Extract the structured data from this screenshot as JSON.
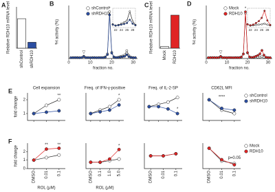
{
  "chart_data": [
    {
      "type": "bar",
      "panel": "A",
      "ylabel": "Relative RDH10 mRNA level",
      "categories": [
        "shControl",
        "shRDH10"
      ],
      "values": [
        1.0,
        0.2
      ],
      "colors": [
        "#ffffff",
        "#2b4ea2"
      ],
      "ylim": [
        0,
        1.4
      ]
    },
    {
      "type": "line",
      "panel": "B",
      "ylabel": "³H activity (%)",
      "xlabel": "fraction no.",
      "x": [
        1,
        2,
        3,
        4,
        5,
        6,
        7,
        8,
        9,
        10,
        11,
        12,
        13,
        14,
        15,
        16,
        17,
        18,
        19,
        20,
        21,
        22,
        23,
        24,
        25,
        26,
        27,
        28,
        29,
        30,
        31
      ],
      "xlim": [
        0,
        32
      ],
      "xticks": [
        0,
        10,
        20,
        30
      ],
      "ylim": [
        0,
        34
      ],
      "series": [
        {
          "name": "shControl",
          "color": "#ffffff",
          "values": [
            0.5,
            0.6,
            0.5,
            0.6,
            0.5,
            0.6,
            1.5,
            0.6,
            0.5,
            0.5,
            0.6,
            0.5,
            0.5,
            0.6,
            0.5,
            0.6,
            1.0,
            3,
            30,
            4,
            1,
            0.6,
            0.8,
            1.2,
            1.6,
            2.2,
            5,
            2,
            0.8,
            0.6,
            0.5
          ]
        },
        {
          "name": "shRDH10",
          "color": "#2b4ea2",
          "values": [
            0.5,
            0.5,
            0.6,
            0.5,
            0.5,
            0.6,
            1.2,
            0.5,
            0.6,
            0.5,
            0.5,
            0.6,
            0.5,
            0.5,
            0.6,
            0.5,
            0.9,
            2.5,
            28,
            3.5,
            0.9,
            0.6,
            0.7,
            0.9,
            1.1,
            1.4,
            2.4,
            1.2,
            0.7,
            0.5,
            0.5
          ]
        }
      ],
      "inset": {
        "xlim": [
          21,
          29
        ],
        "xticks": [
          22,
          24,
          26,
          28
        ],
        "ylim": [
          0,
          6
        ]
      },
      "annotations": [
        {
          "text": "*",
          "x": 19,
          "y": 32
        },
        {
          "text": "▽",
          "x": 7,
          "y": 4
        }
      ]
    },
    {
      "type": "bar",
      "panel": "C",
      "ylabel": "Relative RDH10 mRNA level",
      "categories": [
        "Mock",
        "RDH10"
      ],
      "values": [
        1,
        20
      ],
      "colors": [
        "#ffffff",
        "#e02424"
      ],
      "ylim": [
        0,
        25
      ]
    },
    {
      "type": "line",
      "panel": "D",
      "ylabel": "³H activity (%)",
      "xlabel": "fraction no.",
      "x": [
        1,
        2,
        3,
        4,
        5,
        6,
        7,
        8,
        9,
        10,
        11,
        12,
        13,
        14,
        15,
        16,
        17,
        18,
        19,
        20,
        21,
        22,
        23,
        24,
        25,
        26,
        27,
        28,
        29,
        30,
        31
      ],
      "xlim": [
        0,
        32
      ],
      "xticks": [
        0,
        10,
        20,
        30
      ],
      "ylim": [
        0,
        34
      ],
      "series": [
        {
          "name": "Mock",
          "color": "#ffffff",
          "values": [
            0.5,
            0.6,
            0.5,
            0.6,
            0.5,
            0.6,
            1.4,
            0.6,
            0.5,
            0.5,
            0.6,
            0.5,
            0.5,
            0.6,
            0.5,
            0.6,
            1.0,
            3,
            29,
            3.5,
            1,
            0.6,
            0.7,
            0.8,
            0.9,
            1.0,
            1.2,
            0.9,
            0.7,
            0.6,
            0.5
          ]
        },
        {
          "name": "RDH10",
          "color": "#e02424",
          "values": [
            0.5,
            0.5,
            0.6,
            0.5,
            0.5,
            0.6,
            1.2,
            0.5,
            0.6,
            0.5,
            0.5,
            0.6,
            0.5,
            0.5,
            0.6,
            0.5,
            0.9,
            2.8,
            30,
            3.8,
            1,
            0.7,
            0.9,
            1.4,
            2,
            3,
            5.2,
            2.2,
            0.8,
            0.6,
            0.5
          ]
        }
      ],
      "inset": {
        "xlim": [
          21,
          29
        ],
        "xticks": [
          22,
          24,
          26,
          28
        ],
        "ylim": [
          0,
          6
        ]
      },
      "annotations": [
        {
          "text": "*",
          "x": 19,
          "y": 32
        },
        {
          "text": "▽",
          "x": 7,
          "y": 4
        }
      ]
    },
    {
      "type": "line",
      "panel": "E",
      "title": "Cell expansion",
      "ylabel": "fold change",
      "categories": [
        null,
        null,
        null
      ],
      "ylim": [
        0.5,
        2.5
      ],
      "yticks": [
        1,
        2
      ],
      "series": [
        {
          "name": "shControl",
          "color": "#ffffff",
          "values": [
            1,
            1.6,
            2.0
          ]
        },
        {
          "name": "shRDH10",
          "color": "#2b4ea2",
          "values": [
            1,
            1.1,
            1.2
          ]
        }
      ],
      "annotations": [
        {
          "text": "**",
          "x": 2,
          "y": 2.3
        }
      ]
    },
    {
      "type": "line",
      "title": "Freq. of IFN-γ-positive",
      "categories": [
        null,
        null,
        null,
        null
      ],
      "ylim": [
        0.8,
        1.6
      ],
      "series": [
        {
          "name": "shControl",
          "color": "#ffffff",
          "values": [
            1,
            1.1,
            1.2,
            1.4
          ]
        },
        {
          "name": "shRDH10",
          "color": "#2b4ea2",
          "values": [
            1,
            1.05,
            1.1,
            1.25
          ]
        }
      ],
      "annotations": [
        {
          "text": "*",
          "x": 3,
          "y": 1.52
        }
      ]
    },
    {
      "type": "line",
      "title": "Freq. of IL-2-SP",
      "categories": [
        null,
        null,
        null,
        null
      ],
      "ylim": [
        0.7,
        1.3
      ],
      "series": [
        {
          "name": "shControl",
          "color": "#ffffff",
          "values": [
            1,
            1.05,
            1.1,
            1.2
          ]
        },
        {
          "name": "shRDH10",
          "color": "#2b4ea2",
          "values": [
            1,
            1.0,
            0.95,
            0.85
          ]
        }
      ],
      "annotations": [
        {
          "text": "*",
          "x": 3,
          "y": 0.95
        }
      ]
    },
    {
      "type": "line",
      "title": "CD62L MFI",
      "categories": [
        null,
        null,
        null
      ],
      "ylim": [
        0.4,
        1.2
      ],
      "legend": true,
      "series": [
        {
          "name": "shControl",
          "color": "#ffffff",
          "values": [
            1,
            0.7,
            0.6
          ]
        },
        {
          "name": "shRDH10",
          "color": "#2b4ea2",
          "values": [
            1,
            0.75,
            0.7
          ]
        }
      ],
      "annotations": [
        {
          "text": "****",
          "x": 1,
          "y": 1.08
        }
      ]
    },
    {
      "type": "line",
      "panel": "F",
      "ylabel": "fold change",
      "xlabel": "ROL (μM)",
      "categories": [
        "DMSO",
        "0.01",
        "0.1"
      ],
      "ylim": [
        0,
        3
      ],
      "yticks": [
        0,
        1,
        2
      ],
      "series": [
        {
          "name": "Mock",
          "color": "#ffffff",
          "values": [
            1,
            1.3,
            1.6
          ]
        },
        {
          "name": "RDH10",
          "color": "#e02424",
          "values": [
            1,
            2.3,
            2.4
          ]
        }
      ],
      "annotations": [
        {
          "text": "**",
          "x": 1,
          "y": 2.8
        },
        {
          "text": "**",
          "x": 2,
          "y": 2.8
        }
      ]
    },
    {
      "type": "line",
      "xlabel": "ROL (μM)",
      "categories": [
        "DMSO",
        "0.1",
        "1.0",
        "5.0"
      ],
      "ylim": [
        0.8,
        1.6
      ],
      "series": [
        {
          "name": "Mock",
          "color": "#ffffff",
          "values": [
            1,
            1.0,
            1.05,
            1.1
          ]
        },
        {
          "name": "RDH10",
          "color": "#e02424",
          "values": [
            1,
            1.0,
            1.1,
            1.4
          ]
        }
      ],
      "annotations": [
        {
          "text": "*",
          "x": 3,
          "y": 1.52
        }
      ]
    },
    {
      "type": "line",
      "categories": [
        "DMSO",
        "0.01",
        "0.1"
      ],
      "ylim": [
        0.7,
        1.3
      ],
      "series": [
        {
          "name": "Mock",
          "color": "#ffffff",
          "values": [
            1,
            1.0,
            1.05
          ]
        },
        {
          "name": "RDH10",
          "color": "#e02424",
          "values": [
            1,
            1.0,
            1.05
          ]
        }
      ]
    },
    {
      "type": "line",
      "categories": [
        "DMSO",
        "0.01",
        "0.1"
      ],
      "ylim": [
        0.2,
        1.2
      ],
      "legend": true,
      "series": [
        {
          "name": "Mock",
          "color": "#ffffff",
          "values": [
            1,
            0.5,
            0.4
          ]
        },
        {
          "name": "RDH10",
          "color": "#e02424",
          "values": [
            1,
            0.55,
            0.35
          ]
        }
      ],
      "annotations": [
        {
          "text": "p=0.05",
          "x": 2,
          "y": 0.62
        }
      ]
    }
  ]
}
